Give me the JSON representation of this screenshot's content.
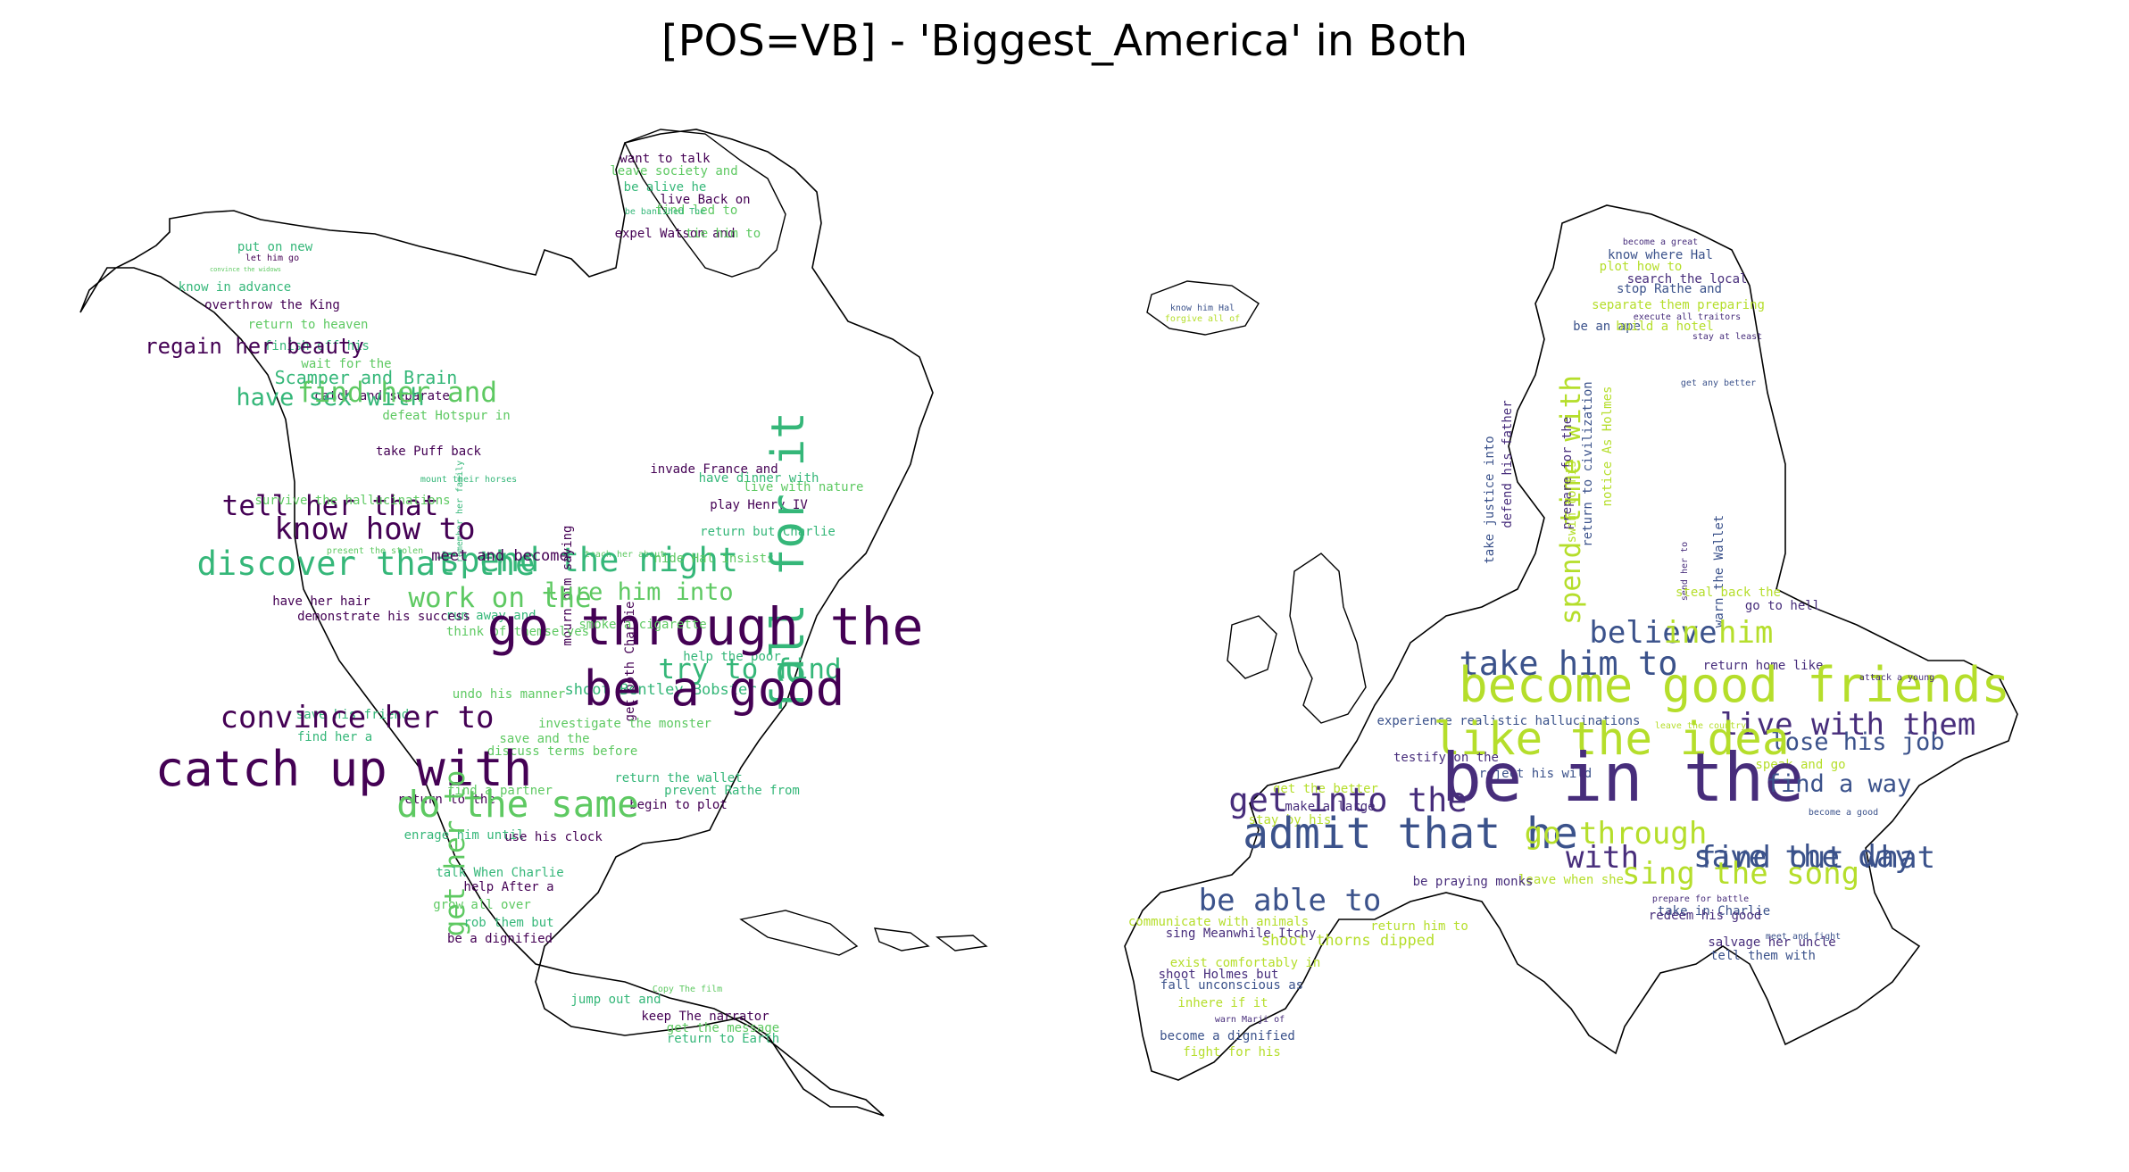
{
  "title": "[POS=VB] - 'Biggest_America' in Both",
  "palette": [
    "#440154",
    "#3b528b",
    "#21918c",
    "#5ec962",
    "#b5de2b",
    "#2c728e",
    "#35b779",
    "#472d7b",
    "#fde725"
  ],
  "clouds": [
    {
      "name": "north-america",
      "phrases": [
        [
          "want to talk",
          4
        ],
        [
          "leave society and",
          4
        ],
        [
          "be alive he",
          4
        ],
        [
          "live Back on",
          4
        ],
        [
          "find led to",
          4
        ],
        [
          "be banished The",
          3
        ],
        [
          "expel Watson and",
          4
        ],
        [
          "tie him to",
          4
        ],
        [
          "put on new",
          4
        ],
        [
          "let him go",
          3
        ],
        [
          "convince the widows",
          2
        ],
        [
          "know in advance",
          4
        ],
        [
          "overthrow the King",
          4
        ],
        [
          "return to heaven",
          4
        ],
        [
          "finish off his",
          4
        ],
        [
          "regain her beauty",
          7
        ],
        [
          "wait for the",
          4
        ],
        [
          "Scamper and Brain",
          6
        ],
        [
          "catch and separate",
          4
        ],
        [
          "defeat Hotspur in",
          4
        ],
        [
          "have sex with",
          8
        ],
        [
          "take Puff back",
          4
        ],
        [
          "find her and",
          9
        ],
        [
          "mount their horses",
          3
        ],
        [
          "tell her that",
          9
        ],
        [
          "survive the hallucinations",
          4
        ],
        [
          "remember her family",
          3
        ],
        [
          "know how to",
          10
        ],
        [
          "present the stolen",
          3
        ],
        [
          "discover that the",
          11
        ],
        [
          "invade France and",
          4
        ],
        [
          "teach her about",
          3
        ],
        [
          "spend the night",
          11
        ],
        [
          "meet and become",
          5
        ],
        [
          "hide Hal insists",
          4
        ],
        [
          "have dinner with",
          4
        ],
        [
          "play Henry IV",
          4
        ],
        [
          "live with nature",
          4
        ],
        [
          "return but Charlie",
          4
        ],
        [
          "mourn him saying",
          4
        ],
        [
          "lure him into",
          8
        ],
        [
          "fall for it",
          15
        ],
        [
          "have her hair",
          4
        ],
        [
          "work on the",
          9
        ],
        [
          "run away and",
          4
        ],
        [
          "demonstrate his success",
          4
        ],
        [
          "think of themselves",
          4
        ],
        [
          "help the poor",
          4
        ],
        [
          "go through the",
          17
        ],
        [
          "smoke a cigarette",
          4
        ],
        [
          "try to find",
          9
        ],
        [
          "get both Charlie",
          4
        ],
        [
          "undo his manner",
          4
        ],
        [
          "shoot Bentley Bobster",
          5
        ],
        [
          "be a good",
          16
        ],
        [
          "investigate the monster",
          4
        ],
        [
          "save his friend",
          4
        ],
        [
          "convince her to",
          10
        ],
        [
          "discuss terms before",
          4
        ],
        [
          "find her a",
          4
        ],
        [
          "catch up with",
          16
        ],
        [
          "save and the",
          4
        ],
        [
          "return the wallet",
          4
        ],
        [
          "return to the",
          4
        ],
        [
          "find a partner",
          4
        ],
        [
          "prevent Rathe from",
          4
        ],
        [
          "begin to plot",
          4
        ],
        [
          "do the same",
          12
        ],
        [
          "enrage him until",
          4
        ],
        [
          "use his clock",
          4
        ],
        [
          "get her to",
          9
        ],
        [
          "talk When Charlie",
          4
        ],
        [
          "help After a",
          4
        ],
        [
          "grow all over",
          4
        ],
        [
          "rob them but",
          4
        ],
        [
          "be a dignified",
          4
        ],
        [
          "Copy The film",
          3
        ],
        [
          "jump out and",
          4
        ],
        [
          "keep The narrator",
          4
        ],
        [
          "get the message",
          4
        ],
        [
          "return to Earth",
          4
        ],
        [
          "compete for the",
          4
        ],
        [
          "be safe and",
          3
        ]
      ]
    },
    {
      "name": "europe",
      "phrases": [
        [
          "know him Hal",
          3
        ],
        [
          "forgive all of",
          3
        ],
        [
          "become a great",
          3
        ],
        [
          "know where Hal",
          4
        ],
        [
          "plot how to",
          4
        ],
        [
          "search the local",
          4
        ],
        [
          "stop Rathe and",
          4
        ],
        [
          "separate them preparing",
          4
        ],
        [
          "execute all traitors",
          3
        ],
        [
          "be an ape",
          4
        ],
        [
          "build a hotel",
          4
        ],
        [
          "stay at least",
          3
        ],
        [
          "get any better",
          3
        ],
        [
          "spend time with",
          9
        ],
        [
          "prepare for the",
          4
        ],
        [
          "return to civilization",
          4
        ],
        [
          "notice As Holmes",
          4
        ],
        [
          "defend his father",
          4
        ],
        [
          "take justice into",
          4
        ],
        [
          "swim to his",
          4
        ],
        [
          "send her to",
          3
        ],
        [
          "warn the Wallet",
          4
        ],
        [
          "steal back the",
          4
        ],
        [
          "go to hell",
          4
        ],
        [
          "believe",
          10
        ],
        [
          "in him",
          10
        ],
        [
          "return home like",
          4
        ],
        [
          "take him to",
          11
        ],
        [
          "become good friends",
          16
        ],
        [
          "attack a young",
          3
        ],
        [
          "experience realistic hallucinations",
          4
        ],
        [
          "leave the country",
          3
        ],
        [
          "live with them",
          10
        ],
        [
          "lose his job",
          8
        ],
        [
          "like the idea",
          15
        ],
        [
          "testify on the",
          4
        ],
        [
          "reject his wild",
          4
        ],
        [
          "speak and go",
          4
        ],
        [
          "be in the",
          22
        ],
        [
          "find a way",
          8
        ],
        [
          "get the better",
          4
        ],
        [
          "make a large",
          4
        ],
        [
          "become a good",
          3
        ],
        [
          "stay by his",
          4
        ],
        [
          "get into the",
          11
        ],
        [
          "admit that he",
          14
        ],
        [
          "go through",
          10
        ],
        [
          "with",
          10
        ],
        [
          "find out what",
          10
        ],
        [
          "leave when she",
          4
        ],
        [
          "be praying monks",
          4
        ],
        [
          "save the day",
          10
        ],
        [
          "sing the song",
          10
        ],
        [
          "prepare for battle",
          3
        ],
        [
          "take in Charlie",
          4
        ],
        [
          "communicate with animals",
          4
        ],
        [
          "sing Meanwhile Itchy",
          4
        ],
        [
          "be able to",
          10
        ],
        [
          "return him to",
          4
        ],
        [
          "redeem his good",
          4
        ],
        [
          "meet and fight",
          3
        ],
        [
          "shoot thorns dipped",
          5
        ],
        [
          "salvage her uncle",
          4
        ],
        [
          "tell them with",
          4
        ],
        [
          "exist comfortably in",
          4
        ],
        [
          "shoot Holmes but",
          4
        ],
        [
          "fall unconscious as",
          4
        ],
        [
          "inhere if it",
          4
        ],
        [
          "warn Marji of",
          3
        ],
        [
          "become a dignified",
          4
        ],
        [
          "fight for his",
          4
        ]
      ]
    }
  ]
}
